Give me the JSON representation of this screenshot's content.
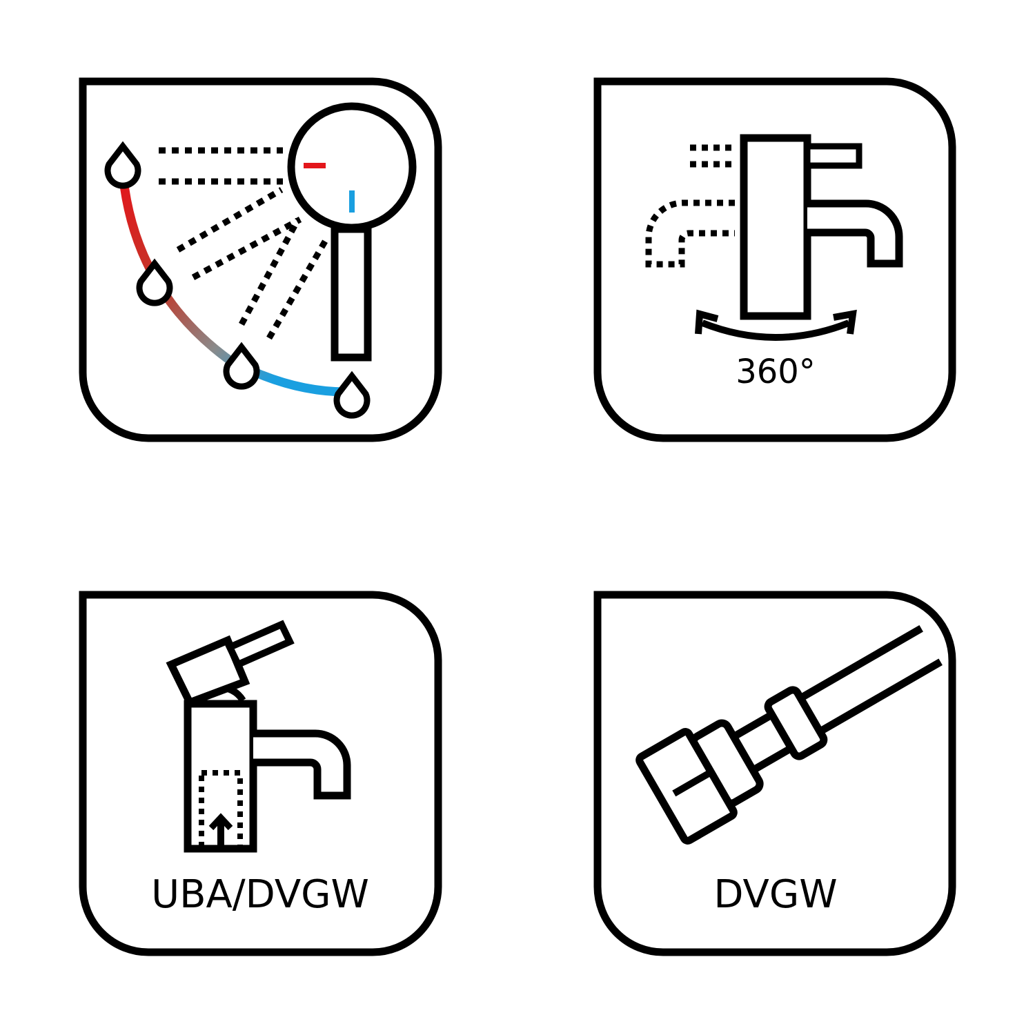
{
  "tiles": [
    {
      "name": "temperature-control",
      "label": ""
    },
    {
      "name": "swivel-spout",
      "label": "360°"
    },
    {
      "name": "pop-up-waste",
      "label": "UBA/DVGW"
    },
    {
      "name": "hose-connection",
      "label": "DVGW"
    }
  ],
  "colors": {
    "stroke": "#000000",
    "background": "#ffffff",
    "hot": "#e3161b",
    "cold": "#1a9fe0",
    "gradient_mid": "#8a8a8a"
  },
  "icons": [
    "temperature-mixing-icon",
    "swivel-360-icon",
    "pop-up-waste-faucet-icon",
    "hose-connector-icon"
  ]
}
